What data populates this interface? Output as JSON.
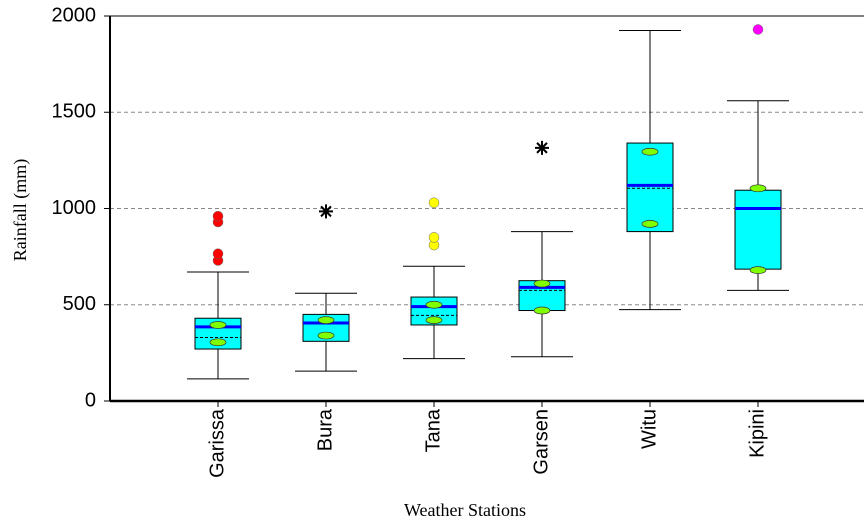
{
  "chart_data": {
    "type": "box",
    "y_label": "Rainfall (mm)",
    "x_label": "Weather Stations",
    "categories": [
      "Garissa",
      "Bura",
      "Tana",
      "Garsen",
      "Witu",
      "Kipini"
    ],
    "boxes": [
      {
        "whisker_low": 115,
        "q1": 270,
        "median": 385,
        "mean": 330,
        "q3": 430,
        "whisker_high": 670,
        "notch": [
          305,
          395
        ],
        "outliers": [
          730,
          765,
          930,
          960
        ],
        "outlier_color": "#ff0000",
        "outlier_marker": "circle"
      },
      {
        "whisker_low": 155,
        "q1": 310,
        "median": 405,
        "mean": 410,
        "q3": 450,
        "whisker_high": 560,
        "notch": [
          340,
          420
        ],
        "outliers": [
          985
        ],
        "outlier_color": "#000000",
        "outlier_marker": "star"
      },
      {
        "whisker_low": 220,
        "q1": 395,
        "median": 490,
        "mean": 445,
        "q3": 540,
        "whisker_high": 700,
        "notch": [
          420,
          500
        ],
        "outliers": [
          810,
          850,
          1030
        ],
        "outlier_color": "#ffff00",
        "outlier_marker": "circle"
      },
      {
        "whisker_low": 230,
        "q1": 470,
        "median": 590,
        "mean": 575,
        "q3": 625,
        "whisker_high": 880,
        "notch": [
          470,
          610
        ],
        "outliers": [
          1315
        ],
        "outlier_color": "#000000",
        "outlier_marker": "star"
      },
      {
        "whisker_low": 475,
        "q1": 880,
        "median": 1120,
        "mean": 1105,
        "q3": 1340,
        "whisker_high": 1925,
        "notch": [
          920,
          1295
        ],
        "outliers": [],
        "outlier_color": "#000000",
        "outlier_marker": "circle"
      },
      {
        "whisker_low": 575,
        "q1": 685,
        "median": 1000,
        "mean": 1000,
        "q3": 1095,
        "whisker_high": 1560,
        "notch": [
          680,
          1105
        ],
        "outliers": [
          1930
        ],
        "outlier_color": "#ff00ff",
        "outlier_marker": "circle"
      }
    ],
    "box_color": "#00ffff",
    "median_color": "#0000ff",
    "notch_color": "#80ff00",
    "ylim": [
      0,
      2000
    ],
    "yticks": [
      0,
      500,
      1000,
      1500,
      2000
    ],
    "grid": true
  }
}
